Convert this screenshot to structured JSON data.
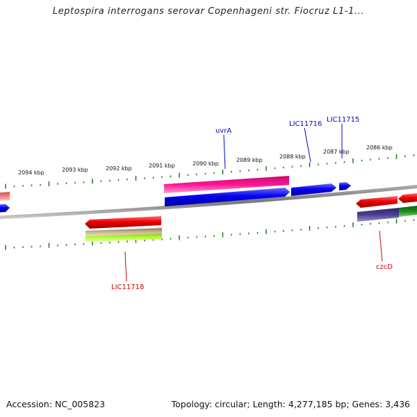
{
  "title": "Leptospira interrogans serovar Copenhageni str. Fiocruz L1-1...",
  "footer": {
    "accession": "Accession: NC_005823",
    "summary": "Topology: circular; Length: 4,277,185 bp; Genes: 3,436"
  },
  "scale": {
    "unit": "kbp",
    "ticks": [
      {
        "value": 2094,
        "label": "2094 kbp"
      },
      {
        "value": 2093,
        "label": "2093 kbp"
      },
      {
        "value": 2092,
        "label": "2092 kbp"
      },
      {
        "value": 2091,
        "label": "2091 kbp"
      },
      {
        "value": 2090,
        "label": "2090 kbp"
      },
      {
        "value": 2089,
        "label": "2089 kbp"
      },
      {
        "value": 2088,
        "label": "2088 kbp"
      },
      {
        "value": 2087,
        "label": "2087 kbp"
      },
      {
        "value": 2086,
        "label": "2086 kbp"
      }
    ]
  },
  "genes": {
    "uvrA": {
      "name": "uvrA",
      "color": "#0000cc"
    },
    "LIC11716": {
      "name": "LIC11716",
      "color": "#0000cc"
    },
    "LIC11715": {
      "name": "LIC11715",
      "color": "#0000cc"
    },
    "LIC11718": {
      "name": "LIC11718",
      "color": "#cc0000"
    },
    "czcD": {
      "name": "czcD",
      "color": "#cc0000"
    }
  },
  "colors": {
    "backbone": "#888888",
    "tick": "#1a7a1a",
    "forward_cds": "#0000ee",
    "reverse_cds": "#ee0000",
    "magenta_feature": "#ff1493",
    "khaki_feature": "#b5a77a",
    "lime_feature": "#b6ff3a",
    "purple_feature": "#4b3f8f",
    "green_feature": "#1e8b1e",
    "pink_feature": "#f08080"
  }
}
